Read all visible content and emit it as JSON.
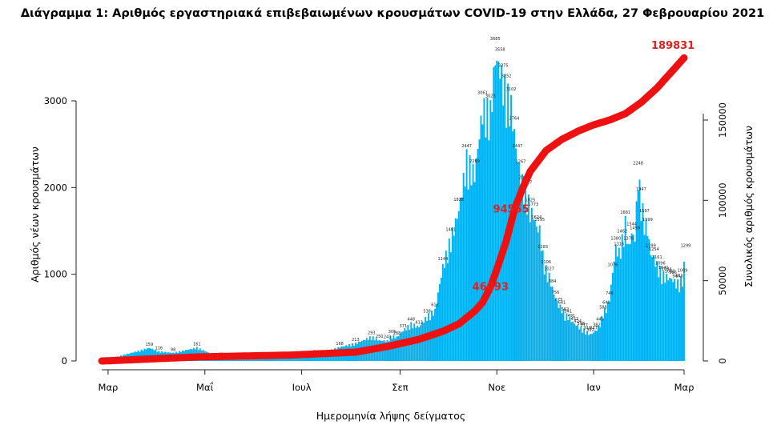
{
  "chart_data": {
    "type": "bar",
    "title": "Διάγραμμα 1: Αριθμός εργαστηριακά επιβεβαιωμένων κρουσμάτων COVID-19 στην Ελλάδα, 27 Φεβρουαρίου 2021",
    "xlabel": "Ημερομηνία λήψης δείγματος",
    "ylabel": "Αριθμός νέων κρουσμάτων",
    "y2label": "Συνολικός αριθμός κρουσμάτων",
    "ylim": [
      0,
      3700
    ],
    "y2lim": [
      0,
      189831
    ],
    "yticks": [
      0,
      1000,
      2000,
      3000
    ],
    "y2ticks": [
      0,
      50000,
      100000,
      150000
    ],
    "xticks": [
      "Μαρ",
      "Μαΐ",
      "Ιουλ",
      "Σεπ",
      "Νοε",
      "Ιαν",
      "Μαρ"
    ],
    "x_start": "2020-02-26",
    "x_end": "2021-02-27",
    "grid": false,
    "legend": "none",
    "colors": {
      "bars": "#00b0f0",
      "cumulative": "#ee1111",
      "annotation": "#e02020"
    },
    "series": [
      {
        "type": "bar",
        "name": "",
        "label_days": [
          30,
          36,
          45,
          60,
          75,
          90,
          105,
          120,
          135,
          150,
          160,
          170,
          175,
          180,
          183,
          186,
          190,
          195,
          200,
          205,
          210,
          215,
          220,
          225,
          230,
          235,
          240,
          245,
          248,
          251,
          253,
          255,
          258,
          260,
          262,
          264,
          266,
          268,
          270,
          272,
          274,
          276,
          278,
          280,
          282,
          284,
          286,
          288,
          290,
          292,
          294,
          296,
          298,
          300,
          302,
          304,
          306,
          308,
          310,
          312,
          314,
          316,
          318,
          320,
          322,
          324,
          326,
          328,
          330,
          332,
          334,
          336,
          338,
          340,
          342,
          344,
          346,
          348,
          350,
          352,
          354,
          356,
          358,
          360,
          362,
          364,
          366,
          368
        ],
        "label_values": [
          159,
          116,
          98,
          161,
          41,
          39,
          32,
          38,
          70,
          168,
          213,
          293,
          250,
          243,
          305,
          288,
          371,
          448,
          413,
          538,
          612,
          1144,
          1481,
          1828,
          2447,
          2269,
          3061,
          3023,
          3685,
          3558,
          3375,
          3252,
          3102,
          2764,
          2447,
          2267,
          2082,
          2027,
          1825,
          1773,
          1624,
          1595,
          1283,
          1106,
          1027,
          884,
          756,
          675,
          641,
          562,
          541,
          491,
          452,
          424,
          398,
          377,
          348,
          322,
          347,
          382,
          449,
          588,
          640,
          748,
          1076,
          1380,
          1316,
          1462,
          1681,
          1378,
          1544,
          1499,
          2248,
          1947,
          1697,
          1599,
          1299,
          1254,
          1161,
          1096,
          1041,
          1024,
          1002,
          986,
          947,
          948,
          1009,
          1299
        ]
      },
      {
        "type": "line",
        "name": "",
        "axis": "y2",
        "x": [
          1,
          60,
          120,
          160,
          180,
          200,
          215,
          225,
          235,
          240,
          245,
          250,
          255,
          260,
          265,
          270,
          280,
          290,
          300,
          310,
          320,
          330,
          340,
          350,
          360,
          368
        ],
        "y": [
          0,
          2500,
          3700,
          5500,
          9000,
          13500,
          18500,
          23000,
          31000,
          36500,
          46093,
          60000,
          75000,
          94000,
          107000,
          118000,
          131000,
          138000,
          143000,
          147000,
          150000,
          154000,
          161000,
          170000,
          181000,
          189831
        ]
      }
    ],
    "annotations": [
      {
        "text": "189831",
        "x": 360,
        "y2": 189831
      },
      {
        "text": "94555",
        "x": 258,
        "y2": 94555
      },
      {
        "text": "46093",
        "x": 245,
        "y2": 46093
      }
    ]
  }
}
